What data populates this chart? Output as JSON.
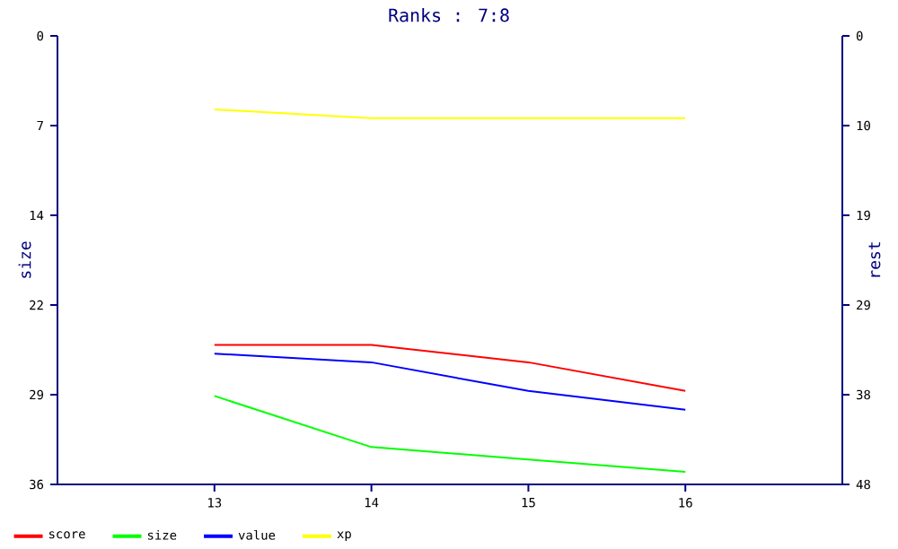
{
  "chart_data": {
    "type": "line",
    "title": "Ranks : 7:8",
    "ylabel": "size",
    "y2label": "rest",
    "categories": [
      "13",
      "14",
      "15",
      "16"
    ],
    "ylim": [
      36,
      0
    ],
    "yticks": [
      {
        "value": 0,
        "label": "0"
      },
      {
        "value": 7.2,
        "label": "7"
      },
      {
        "value": 14.4,
        "label": "14"
      },
      {
        "value": 21.6,
        "label": "22"
      },
      {
        "value": 28.8,
        "label": "29"
      },
      {
        "value": 36,
        "label": "36"
      }
    ],
    "y2lim": [
      48,
      0
    ],
    "y2ticks": [
      {
        "value": 0,
        "label": "0"
      },
      {
        "value": 9.6,
        "label": "10"
      },
      {
        "value": 19.2,
        "label": "19"
      },
      {
        "value": 28.8,
        "label": "29"
      },
      {
        "value": 38.4,
        "label": "38"
      },
      {
        "value": 48,
        "label": "48"
      }
    ],
    "legend": "bottom",
    "series": [
      {
        "name": "score",
        "color": "#ff0000",
        "values": [
          24.8,
          24.8,
          26.2,
          28.5
        ]
      },
      {
        "name": "size",
        "color": "#00ff00",
        "values": [
          28.9,
          33.0,
          34.0,
          35.0
        ]
      },
      {
        "name": "value",
        "color": "#0000ff",
        "values": [
          25.5,
          26.2,
          28.5,
          30.0
        ]
      },
      {
        "name": "xp",
        "color": "#ffff00",
        "values": [
          5.9,
          6.6,
          6.6,
          6.6
        ]
      }
    ]
  }
}
